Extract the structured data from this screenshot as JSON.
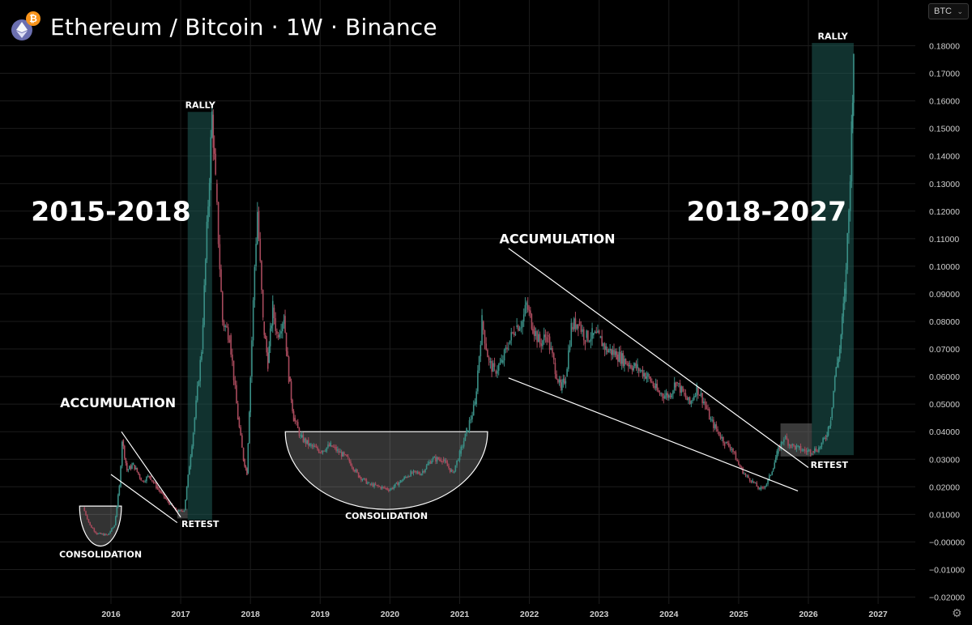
{
  "header": {
    "title": "Ethereum / Bitcoin · 1W · Binance",
    "eth_icon": "ethereum-logo-icon",
    "btc_icon": "bitcoin-logo-icon",
    "btc_glyph": "₿"
  },
  "currency_selector": {
    "value": "BTC",
    "icon": "chevron-down-icon"
  },
  "settings_icon": "gear-icon",
  "settings_glyph": "⚙",
  "colors": {
    "background": "#000000",
    "grid": "#1c1c1c",
    "candle_up": "#3a8f86",
    "candle_down": "#a84a5c",
    "rally_zone": "#1f5b56",
    "zone_fill": "#3c3c3c",
    "annotation": "#ffffff",
    "axis_text": "#cfcfcf"
  },
  "chart_data": {
    "type": "candlestick",
    "title": "Ethereum / Bitcoin · 1W · Binance",
    "yaxis": {
      "min": -0.02,
      "max": 0.18,
      "position": "right",
      "ticks": [
        "0.18000",
        "0.17000",
        "0.16000",
        "0.15000",
        "0.14000",
        "0.13000",
        "0.12000",
        "0.11000",
        "0.10000",
        "0.09000",
        "0.08000",
        "0.07000",
        "0.06000",
        "0.05000",
        "0.04000",
        "0.03000",
        "0.02000",
        "0.01000",
        "−0.00000",
        "−0.01000",
        "−0.02000"
      ]
    },
    "xaxis": {
      "ticks": [
        "2016",
        "2017",
        "2018",
        "2019",
        "2020",
        "2021",
        "2022",
        "2023",
        "2024",
        "2025",
        "2026",
        "2027"
      ]
    },
    "grid": true,
    "price_path": [
      [
        2015.6,
        0.0125
      ],
      [
        2015.7,
        0.006
      ],
      [
        2015.8,
        0.003
      ],
      [
        2015.95,
        0.0025
      ],
      [
        2016.05,
        0.006
      ],
      [
        2016.12,
        0.02
      ],
      [
        2016.16,
        0.037
      ],
      [
        2016.23,
        0.026
      ],
      [
        2016.32,
        0.028
      ],
      [
        2016.45,
        0.022
      ],
      [
        2016.55,
        0.024
      ],
      [
        2016.65,
        0.02
      ],
      [
        2016.8,
        0.015
      ],
      [
        2016.95,
        0.011
      ],
      [
        2017.05,
        0.0115
      ],
      [
        2017.18,
        0.04
      ],
      [
        2017.3,
        0.07
      ],
      [
        2017.45,
        0.155
      ],
      [
        2017.5,
        0.13
      ],
      [
        2017.6,
        0.08
      ],
      [
        2017.7,
        0.075
      ],
      [
        2017.82,
        0.045
      ],
      [
        2017.9,
        0.03
      ],
      [
        2017.95,
        0.025
      ],
      [
        2018.0,
        0.06
      ],
      [
        2018.06,
        0.1
      ],
      [
        2018.1,
        0.12
      ],
      [
        2018.18,
        0.08
      ],
      [
        2018.25,
        0.065
      ],
      [
        2018.32,
        0.085
      ],
      [
        2018.38,
        0.075
      ],
      [
        2018.48,
        0.082
      ],
      [
        2018.55,
        0.06
      ],
      [
        2018.62,
        0.045
      ],
      [
        2018.72,
        0.038
      ],
      [
        2018.85,
        0.035
      ],
      [
        2019.0,
        0.033
      ],
      [
        2019.15,
        0.035
      ],
      [
        2019.25,
        0.033
      ],
      [
        2019.4,
        0.03
      ],
      [
        2019.55,
        0.024
      ],
      [
        2019.7,
        0.021
      ],
      [
        2019.85,
        0.02
      ],
      [
        2020.0,
        0.019
      ],
      [
        2020.15,
        0.022
      ],
      [
        2020.3,
        0.025
      ],
      [
        2020.45,
        0.025
      ],
      [
        2020.6,
        0.03
      ],
      [
        2020.75,
        0.03
      ],
      [
        2020.9,
        0.025
      ],
      [
        2021.0,
        0.032
      ],
      [
        2021.1,
        0.04
      ],
      [
        2021.22,
        0.05
      ],
      [
        2021.32,
        0.08
      ],
      [
        2021.42,
        0.065
      ],
      [
        2021.5,
        0.062
      ],
      [
        2021.6,
        0.065
      ],
      [
        2021.7,
        0.072
      ],
      [
        2021.8,
        0.078
      ],
      [
        2021.9,
        0.08
      ],
      [
        2021.96,
        0.086
      ],
      [
        2022.05,
        0.078
      ],
      [
        2022.15,
        0.072
      ],
      [
        2022.25,
        0.075
      ],
      [
        2022.35,
        0.065
      ],
      [
        2022.45,
        0.055
      ],
      [
        2022.52,
        0.06
      ],
      [
        2022.6,
        0.078
      ],
      [
        2022.7,
        0.08
      ],
      [
        2022.8,
        0.074
      ],
      [
        2022.9,
        0.075
      ],
      [
        2023.0,
        0.074
      ],
      [
        2023.1,
        0.07
      ],
      [
        2023.25,
        0.068
      ],
      [
        2023.4,
        0.065
      ],
      [
        2023.55,
        0.063
      ],
      [
        2023.7,
        0.06
      ],
      [
        2023.85,
        0.054
      ],
      [
        2024.0,
        0.053
      ],
      [
        2024.1,
        0.058
      ],
      [
        2024.2,
        0.054
      ],
      [
        2024.3,
        0.05
      ],
      [
        2024.4,
        0.056
      ],
      [
        2024.5,
        0.051
      ],
      [
        2024.6,
        0.044
      ],
      [
        2024.7,
        0.04
      ],
      [
        2024.8,
        0.036
      ],
      [
        2024.9,
        0.034
      ],
      [
        2025.0,
        0.028
      ],
      [
        2025.1,
        0.024
      ],
      [
        2025.2,
        0.022
      ],
      [
        2025.3,
        0.019
      ],
      [
        2025.4,
        0.021
      ],
      [
        2025.48,
        0.026
      ],
      [
        2025.55,
        0.032
      ],
      [
        2025.65,
        0.038
      ],
      [
        2025.75,
        0.035
      ],
      [
        2025.85,
        0.034
      ],
      [
        2025.95,
        0.033
      ],
      [
        2026.05,
        0.033
      ],
      [
        2026.15,
        0.034
      ],
      [
        2026.25,
        0.038
      ],
      [
        2026.32,
        0.045
      ],
      [
        2026.38,
        0.06
      ],
      [
        2026.45,
        0.07
      ],
      [
        2026.52,
        0.09
      ],
      [
        2026.58,
        0.12
      ],
      [
        2026.62,
        0.15
      ],
      [
        2026.65,
        0.18
      ]
    ],
    "zones": [
      {
        "kind": "rally",
        "x": [
          2017.1,
          2017.45
        ],
        "y": [
          0.008,
          0.156
        ]
      },
      {
        "kind": "rally",
        "x": [
          2026.05,
          2026.65
        ],
        "y": [
          0.0315,
          0.181
        ]
      },
      {
        "kind": "box",
        "x": [
          2016.95,
          2017.1
        ],
        "y": [
          0.0085,
          0.012
        ]
      },
      {
        "kind": "box",
        "x": [
          2025.6,
          2026.05
        ],
        "y": [
          0.031,
          0.043
        ]
      },
      {
        "kind": "rect",
        "x": [
          2015.55,
          2016.15
        ],
        "y": [
          0.0,
          0.013
        ]
      },
      {
        "kind": "rect",
        "x": [
          2018.5,
          2021.4
        ],
        "y": [
          0.018,
          0.04
        ]
      }
    ],
    "bowls": [
      {
        "x": [
          2015.55,
          2016.15
        ],
        "top": 0.013,
        "bottom": -0.0015
      },
      {
        "x": [
          2018.5,
          2021.4
        ],
        "top": 0.04,
        "bottom": 0.0118
      }
    ],
    "trendlines": [
      {
        "x1": 2016.15,
        "y1": 0.04,
        "x2": 2017.0,
        "y2": 0.009
      },
      {
        "x1": 2016.0,
        "y1": 0.0245,
        "x2": 2016.95,
        "y2": 0.007
      },
      {
        "x1": 2021.7,
        "y1": 0.1065,
        "x2": 2026.0,
        "y2": 0.027
      },
      {
        "x1": 2021.7,
        "y1": 0.0595,
        "x2": 2025.85,
        "y2": 0.0185
      }
    ],
    "annotations": [
      {
        "text": "2015-2018",
        "x": 2016.0,
        "y": 0.12,
        "size": "large"
      },
      {
        "text": "2018-2027",
        "x": 2025.4,
        "y": 0.12,
        "size": "large"
      },
      {
        "text": "ACCUMULATION",
        "x": 2016.1,
        "y": 0.0505,
        "size": "medium"
      },
      {
        "text": "ACCUMULATION",
        "x": 2022.4,
        "y": 0.11,
        "size": "medium"
      },
      {
        "text": "RALLY",
        "x": 2017.28,
        "y": 0.1585,
        "size": "small"
      },
      {
        "text": "RALLY",
        "x": 2026.35,
        "y": 0.1835,
        "size": "small"
      },
      {
        "text": "RETEST",
        "x": 2017.28,
        "y": 0.0065,
        "size": "small"
      },
      {
        "text": "RETEST",
        "x": 2026.3,
        "y": 0.028,
        "size": "small"
      },
      {
        "text": "CONSOLIDATION",
        "x": 2015.85,
        "y": -0.0045,
        "size": "small"
      },
      {
        "text": "CONSOLIDATION",
        "x": 2019.95,
        "y": 0.0095,
        "size": "small"
      }
    ]
  }
}
